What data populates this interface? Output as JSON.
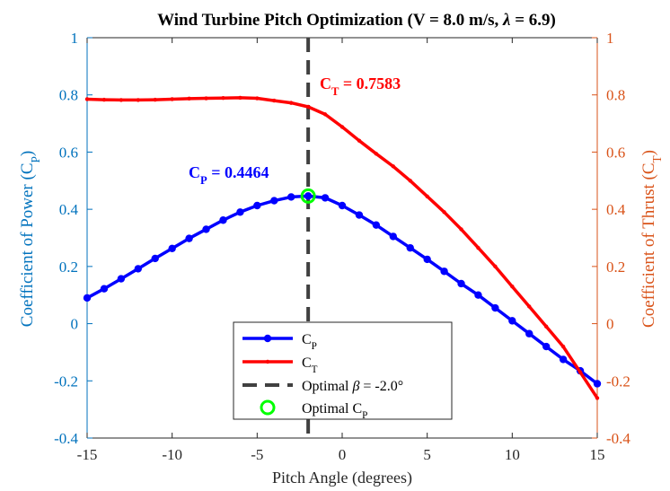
{
  "chart_data": {
    "type": "line",
    "title": "Wind Turbine Pitch Optimization (V = 8.0 m/s, λ = 6.9)",
    "xlabel": "Pitch Angle (degrees)",
    "ylabel_left": "Coefficient of Power (C_P)",
    "ylabel_right": "Coefficient of Thrust (C_T)",
    "xlim": [
      -15,
      15
    ],
    "ylim_left": [
      -0.4,
      1.0
    ],
    "ylim_right": [
      -0.4,
      1.0
    ],
    "x_ticks": [
      -15,
      -10,
      -5,
      0,
      5,
      10,
      15
    ],
    "y_ticks_left": [
      "-0.4",
      "-0.2",
      "0",
      "0.2",
      "0.4",
      "0.6",
      "0.8",
      "1"
    ],
    "y_ticks_right": [
      "-0.4",
      "-0.2",
      "0",
      "0.2",
      "0.4",
      "0.6",
      "0.8",
      "1"
    ],
    "x": [
      -15,
      -14,
      -13,
      -12,
      -11,
      -10,
      -9,
      -8,
      -7,
      -6,
      -5,
      -4,
      -3,
      -2,
      -1,
      0,
      1,
      2,
      3,
      4,
      5,
      6,
      7,
      8,
      9,
      10,
      11,
      12,
      13,
      14,
      15
    ],
    "series": [
      {
        "name": "C_P",
        "axis": "left",
        "color": "#0000ff",
        "values": [
          0.09,
          0.122,
          0.157,
          0.192,
          0.228,
          0.263,
          0.298,
          0.33,
          0.362,
          0.39,
          0.413,
          0.43,
          0.443,
          0.4464,
          0.44,
          0.413,
          0.38,
          0.345,
          0.305,
          0.265,
          0.225,
          0.183,
          0.14,
          0.1,
          0.055,
          0.01,
          -0.035,
          -0.08,
          -0.125,
          -0.165,
          -0.21
        ]
      },
      {
        "name": "C_T",
        "axis": "right",
        "color": "#ff0000",
        "values": [
          0.785,
          0.783,
          0.782,
          0.782,
          0.783,
          0.785,
          0.787,
          0.788,
          0.789,
          0.79,
          0.788,
          0.78,
          0.772,
          0.7583,
          0.732,
          0.688,
          0.64,
          0.594,
          0.55,
          0.5,
          0.445,
          0.39,
          0.33,
          0.265,
          0.2,
          0.13,
          0.06,
          -0.01,
          -0.08,
          -0.17,
          -0.26
        ]
      }
    ],
    "optimal": {
      "beta": -2.0,
      "cp": 0.4464,
      "ct": 0.7583,
      "cp_annotation": "C_P = 0.4464",
      "ct_annotation": "C_T = 0.7583",
      "marker_color": "#00ff00",
      "line_color": "#404040"
    },
    "legend": {
      "placement": "bottom-center",
      "entries": [
        "C_P",
        "C_T",
        "Optimal β = -2.0°",
        "Optimal C_P"
      ]
    },
    "colors": {
      "left_axis": "#0072bd",
      "right_axis": "#d95319"
    },
    "grid": false
  }
}
